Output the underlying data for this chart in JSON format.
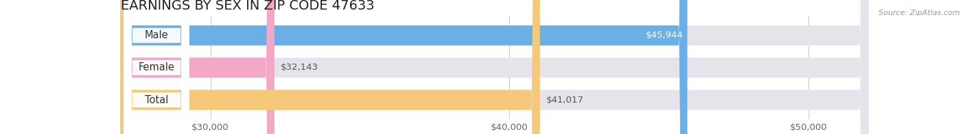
{
  "title": "EARNINGS BY SEX IN ZIP CODE 47633",
  "source": "Source: ZipAtlas.com",
  "categories": [
    "Male",
    "Female",
    "Total"
  ],
  "values": [
    45944,
    32143,
    41017
  ],
  "bar_colors": [
    "#6aafe6",
    "#f4a8c7",
    "#f5c87a"
  ],
  "bar_bg_color": "#e4e4ea",
  "value_labels": [
    "$45,944",
    "$32,143",
    "$41,017"
  ],
  "value_label_colors": [
    "white",
    "#666666",
    "#666666"
  ],
  "xmin": 27000,
  "xmax": 52000,
  "xticks": [
    30000,
    40000,
    50000
  ],
  "xtick_labels": [
    "$30,000",
    "$40,000",
    "$50,000"
  ],
  "background_color": "#ffffff",
  "title_fontsize": 14,
  "tick_fontsize": 9.5,
  "value_fontsize": 9.5,
  "label_fontsize": 10.5
}
